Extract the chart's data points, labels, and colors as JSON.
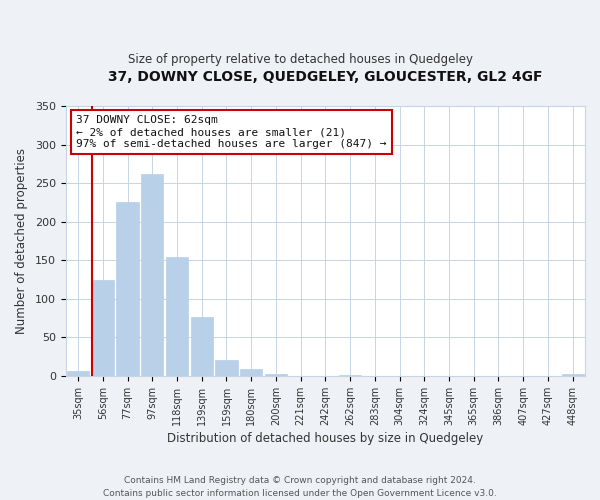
{
  "title": "37, DOWNY CLOSE, QUEDGELEY, GLOUCESTER, GL2 4GF",
  "subtitle": "Size of property relative to detached houses in Quedgeley",
  "xlabel": "Distribution of detached houses by size in Quedgeley",
  "ylabel": "Number of detached properties",
  "bar_labels": [
    "35sqm",
    "56sqm",
    "77sqm",
    "97sqm",
    "118sqm",
    "139sqm",
    "159sqm",
    "180sqm",
    "200sqm",
    "221sqm",
    "242sqm",
    "262sqm",
    "283sqm",
    "304sqm",
    "324sqm",
    "345sqm",
    "365sqm",
    "386sqm",
    "407sqm",
    "427sqm",
    "448sqm"
  ],
  "bar_heights": [
    6,
    124,
    226,
    262,
    154,
    76,
    21,
    9,
    2,
    0,
    0,
    1,
    0,
    0,
    0,
    0,
    0,
    0,
    0,
    0,
    2
  ],
  "bar_color": "#b8d0e8",
  "bar_edge_color": "#b8d0e8",
  "red_line_color": "#cc0000",
  "annotation_line1": "37 DOWNY CLOSE: 62sqm",
  "annotation_line2": "← 2% of detached houses are smaller (21)",
  "annotation_line3": "97% of semi-detached houses are larger (847) →",
  "annotation_box_color": "white",
  "annotation_box_edge_color": "#cc0000",
  "ylim": [
    0,
    350
  ],
  "yticks": [
    0,
    50,
    100,
    150,
    200,
    250,
    300,
    350
  ],
  "footer_text": "Contains HM Land Registry data © Crown copyright and database right 2024.\nContains public sector information licensed under the Open Government Licence v3.0.",
  "bg_color": "#eef2f7",
  "plot_bg_color": "#ffffff",
  "grid_color": "#c5d5e5"
}
